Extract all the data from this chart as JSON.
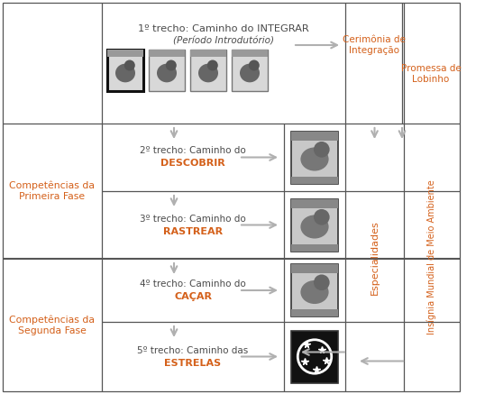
{
  "title_top_line1": "1º trecho: Caminho do INTEGRAR",
  "title_top_line2": "(Período Introdutório)",
  "row_labels_left": [
    "Competências da\nPrimeira Fase",
    "Competências da\nSegunda Fase"
  ],
  "row_texts": [
    [
      "2º trecho: Caminho do",
      "DESCOBRIR"
    ],
    [
      "3º trecho: Caminho do",
      "RASTREAR"
    ],
    [
      "4º trecho: Caminho do",
      "CAÇAR"
    ],
    [
      "5º trecho: Caminho das",
      "ESTRELAS"
    ]
  ],
  "right_top_label1": "Cerimônia de\nIntegração",
  "right_top_label2": "Promessa de\nLobinho",
  "right_col1": "Especialidades",
  "right_col2": "Insígnia Mundial de Meio Ambiente",
  "text_color_orange": "#d4601a",
  "text_color_dark": "#4a4a4a",
  "line_color": "#555555",
  "arrow_color": "#b0b0b0",
  "bg_color": "#ffffff"
}
